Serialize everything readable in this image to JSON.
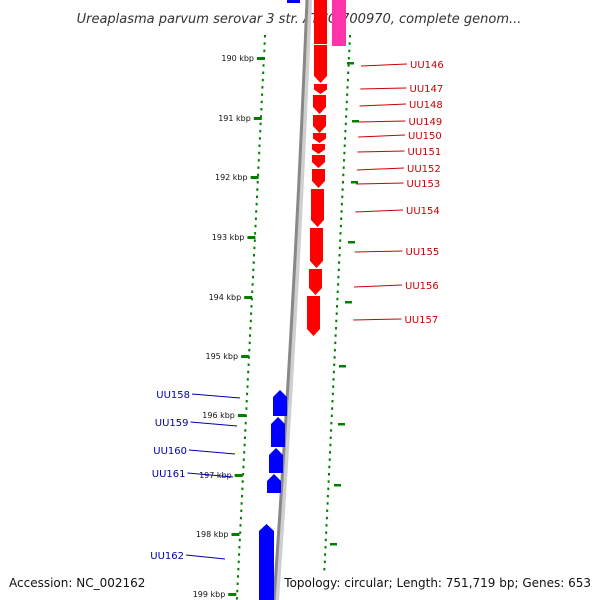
{
  "title": "Ureaplasma parvum serovar 3 str. ATCC 700970, complete genom...",
  "footer": {
    "accession": "Accession: NC_002162",
    "summary": "Topology: circular; Length: 751,719 bp; Genes: 653"
  },
  "colors": {
    "forward_gene": "#ff0000",
    "reverse_gene": "#0000ff",
    "other_feature": "#ff33aa",
    "backbone": "#888888",
    "ticks": "#008000",
    "forward_label": "#cc0000",
    "reverse_label": "#0000aa"
  },
  "axis": {
    "unit": "kbp",
    "ticks": [
      {
        "label": "190 kbp"
      },
      {
        "label": "191 kbp"
      },
      {
        "label": "192 kbp"
      },
      {
        "label": "193 kbp"
      },
      {
        "label": "194 kbp"
      },
      {
        "label": "195 kbp"
      },
      {
        "label": "196 kbp"
      },
      {
        "label": "197 kbp"
      },
      {
        "label": "198 kbp"
      },
      {
        "label": "199 kbp"
      }
    ]
  },
  "genes_forward": [
    {
      "name": "UU146"
    },
    {
      "name": "UU147"
    },
    {
      "name": "UU148"
    },
    {
      "name": "UU149"
    },
    {
      "name": "UU150"
    },
    {
      "name": "UU151"
    },
    {
      "name": "UU152"
    },
    {
      "name": "UU153"
    },
    {
      "name": "UU154"
    },
    {
      "name": "UU155"
    },
    {
      "name": "UU156"
    },
    {
      "name": "UU157"
    }
  ],
  "genes_reverse": [
    {
      "name": "UU158"
    },
    {
      "name": "UU159"
    },
    {
      "name": "UU160"
    },
    {
      "name": "UU161"
    },
    {
      "name": "UU162"
    }
  ]
}
